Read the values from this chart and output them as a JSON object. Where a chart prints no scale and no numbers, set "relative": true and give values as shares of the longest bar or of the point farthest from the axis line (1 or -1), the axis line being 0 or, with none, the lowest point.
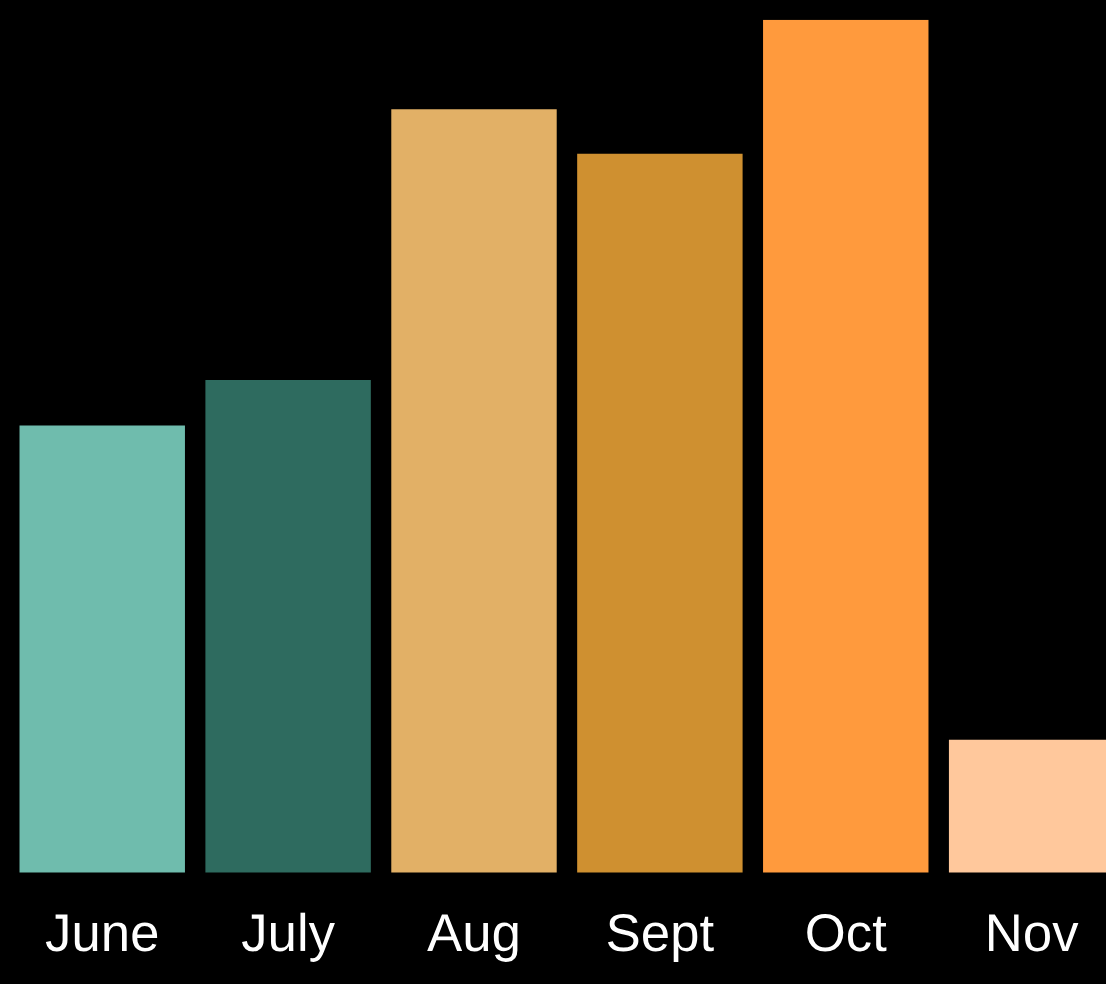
{
  "chart_data": {
    "type": "bar",
    "relative": true,
    "categories": [
      "June",
      "July",
      "Aug",
      "Sept",
      "Oct",
      "Nov"
    ],
    "values": [
      0.525,
      0.578,
      0.895,
      0.843,
      1,
      0.157
    ],
    "colors": [
      "#6fbcad",
      "#2e6b5f",
      "#e2b066",
      "#cf9030",
      "#ff9a3d",
      "#ffc89c"
    ]
  }
}
